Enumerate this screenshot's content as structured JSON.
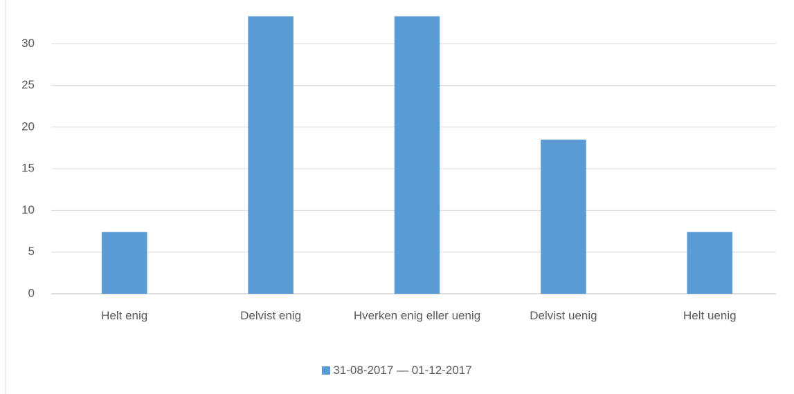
{
  "chart_data": {
    "type": "bar",
    "categories": [
      "Helt enig",
      "Delvist enig",
      "Hverken enig eller uenig",
      "Delvist uenig",
      "Helt uenig"
    ],
    "series": [
      {
        "name": "31-08-2017 — 01-12-2017",
        "color": "#5b9bd5",
        "values": [
          7.4,
          33.3,
          33.3,
          18.5,
          7.4
        ]
      }
    ],
    "ylim": [
      0,
      35
    ],
    "yticks": [
      0,
      5,
      10,
      15,
      20,
      25,
      30
    ],
    "grid": true
  }
}
